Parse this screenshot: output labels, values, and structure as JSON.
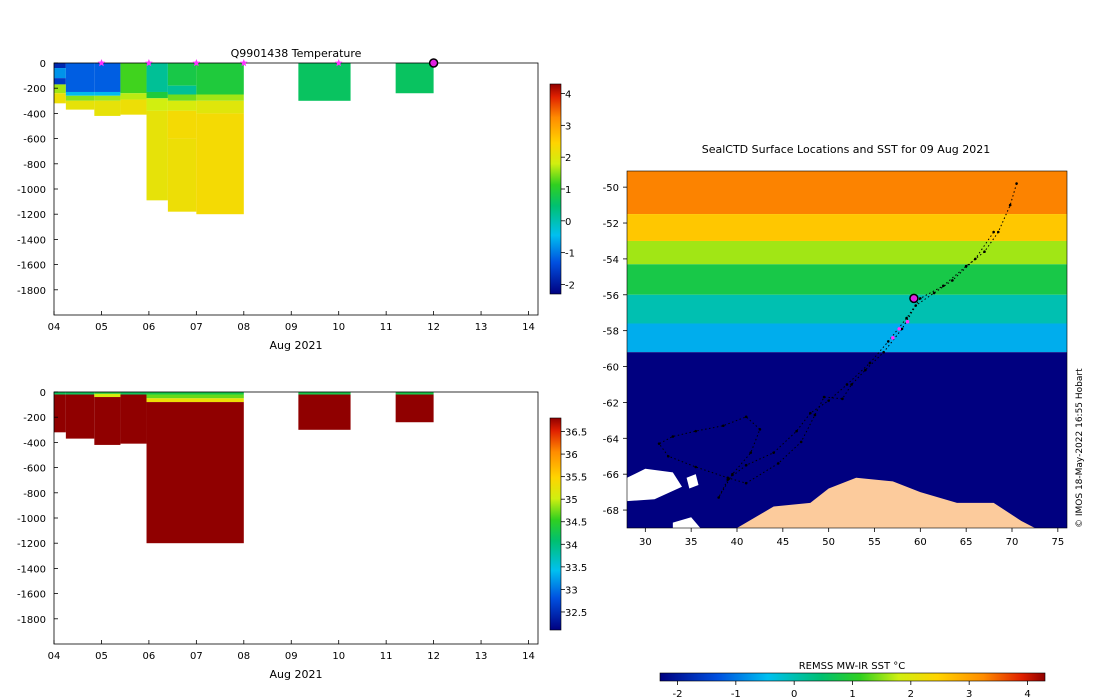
{
  "chart_data": [
    {
      "type": "heatmap",
      "title": "Q9901438  Temperature",
      "xlabel": "Aug 2021",
      "x_ticks": [
        "04",
        "05",
        "06",
        "07",
        "08",
        "09",
        "10",
        "11",
        "12",
        "13",
        "14"
      ],
      "y_ticks": [
        "0",
        "-200",
        "-400",
        "-600",
        "-800",
        "-1000",
        "-1200",
        "-1400",
        "-1600",
        "-1800"
      ],
      "xlim_day": [
        4,
        14.2
      ],
      "ylim": [
        -2000,
        0
      ],
      "colorbar": {
        "ticks": [
          "-2",
          "-1",
          "0",
          "1",
          "2",
          "3",
          "4"
        ],
        "range": [
          -2.3,
          4.3
        ]
      },
      "profiles": [
        {
          "start": 4.0,
          "end": 4.25,
          "depth": 320,
          "layers": [
            [
              40,
              -1.8
            ],
            [
              120,
              -0.8
            ],
            [
              170,
              -1.6
            ],
            [
              240,
              1.6
            ],
            [
              320,
              2.2
            ]
          ]
        },
        {
          "start": 4.25,
          "end": 4.85,
          "depth": 370,
          "layers": [
            [
              230,
              -1.2
            ],
            [
              260,
              -0.5
            ],
            [
              300,
              1.5
            ],
            [
              370,
              2.1
            ]
          ]
        },
        {
          "start": 4.85,
          "end": 5.4,
          "depth": 420,
          "layers": [
            [
              230,
              -1.2
            ],
            [
              260,
              -0.5
            ],
            [
              300,
              1.6
            ],
            [
              420,
              2.1
            ]
          ]
        },
        {
          "start": 5.4,
          "end": 5.95,
          "depth": 410,
          "layers": [
            [
              240,
              1.2
            ],
            [
              290,
              1.7
            ],
            [
              410,
              2.2
            ]
          ]
        },
        {
          "start": 5.95,
          "end": 6.4,
          "depth": 1090,
          "layers": [
            [
              230,
              0.2
            ],
            [
              280,
              0.9
            ],
            [
              380,
              1.8
            ],
            [
              1090,
              2.1
            ]
          ]
        },
        {
          "start": 6.4,
          "end": 7.0,
          "depth": 1180,
          "layers": [
            [
              180,
              0.8
            ],
            [
              250,
              0.2
            ],
            [
              300,
              1.4
            ],
            [
              380,
              1.9
            ],
            [
              600,
              2.3
            ],
            [
              1180,
              2.2
            ]
          ]
        },
        {
          "start": 7.0,
          "end": 8.0,
          "depth": 1200,
          "layers": [
            [
              250,
              0.9
            ],
            [
              300,
              1.6
            ],
            [
              400,
              2.0
            ],
            [
              1200,
              2.3
            ]
          ]
        },
        {
          "start": 9.15,
          "end": 10.25,
          "depth": 300,
          "layers": [
            [
              300,
              0.6
            ]
          ]
        },
        {
          "start": 11.2,
          "end": 12.0,
          "depth": 240,
          "layers": [
            [
              240,
              0.6
            ]
          ]
        }
      ],
      "markers": [
        {
          "day": 5.0,
          "type": "star"
        },
        {
          "day": 6.0,
          "type": "star"
        },
        {
          "day": 7.0,
          "type": "star"
        },
        {
          "day": 8.0,
          "type": "star"
        },
        {
          "day": 10.0,
          "type": "star"
        },
        {
          "day": 12.0,
          "type": "circle"
        }
      ]
    },
    {
      "type": "heatmap",
      "xlabel": "Aug 2021",
      "x_ticks": [
        "04",
        "05",
        "06",
        "07",
        "08",
        "09",
        "10",
        "11",
        "12",
        "13",
        "14"
      ],
      "y_ticks": [
        "0",
        "-200",
        "-400",
        "-600",
        "-800",
        "-1000",
        "-1200",
        "-1400",
        "-1600",
        "-1800"
      ],
      "xlim_day": [
        4,
        14.2
      ],
      "ylim": [
        -2000,
        0
      ],
      "colorbar": {
        "ticks": [
          "32.5",
          "33",
          "33.5",
          "34",
          "34.5",
          "35",
          "35.5",
          "36",
          "36.5"
        ],
        "range": [
          32.1,
          36.8
        ]
      },
      "profiles": [
        {
          "start": 4.0,
          "end": 4.25,
          "depth": 320,
          "layers": [
            [
              20,
              34.2
            ],
            [
              320,
              36.8
            ]
          ]
        },
        {
          "start": 4.25,
          "end": 4.85,
          "depth": 370,
          "layers": [
            [
              20,
              34.2
            ],
            [
              370,
              36.8
            ]
          ]
        },
        {
          "start": 4.85,
          "end": 5.4,
          "depth": 420,
          "layers": [
            [
              15,
              34.4
            ],
            [
              40,
              35.1
            ],
            [
              420,
              36.8
            ]
          ]
        },
        {
          "start": 5.4,
          "end": 5.95,
          "depth": 410,
          "layers": [
            [
              20,
              34.2
            ],
            [
              410,
              36.8
            ]
          ]
        },
        {
          "start": 5.95,
          "end": 8.0,
          "depth": 1200,
          "layers": [
            [
              20,
              34.3
            ],
            [
              50,
              34.7
            ],
            [
              80,
              35.3
            ],
            [
              1200,
              36.8
            ]
          ]
        },
        {
          "start": 9.15,
          "end": 10.25,
          "depth": 300,
          "layers": [
            [
              20,
              34.3
            ],
            [
              300,
              36.8
            ]
          ]
        },
        {
          "start": 11.2,
          "end": 12.0,
          "depth": 240,
          "layers": [
            [
              20,
              34.3
            ],
            [
              240,
              36.8
            ]
          ]
        }
      ]
    },
    {
      "type": "heatmap",
      "title": "SealCTD Surface Locations and SST for 09 Aug 2021",
      "x_ticks": [
        "30",
        "35",
        "40",
        "45",
        "50",
        "55",
        "60",
        "65",
        "70",
        "75"
      ],
      "y_ticks": [
        "-50",
        "-52",
        "-54",
        "-56",
        "-58",
        "-60",
        "-62",
        "-64",
        "-66",
        "-68"
      ],
      "xlim": [
        28,
        76
      ],
      "ylim": [
        -69,
        -49.1
      ],
      "colorbar": {
        "label": "REMSS MW-IR SST °C",
        "ticks": [
          "-2",
          "-1",
          "0",
          "1",
          "2",
          "3",
          "4"
        ],
        "range": [
          -2.3,
          4.3
        ]
      },
      "sst_bands": [
        {
          "lat_north": -49.1,
          "lat_south": -51.5,
          "sst": 3.3
        },
        {
          "lat_north": -51.5,
          "lat_south": -53.0,
          "sst": 2.6
        },
        {
          "lat_north": -53.0,
          "lat_south": -54.3,
          "sst": 1.6
        },
        {
          "lat_north": -54.3,
          "lat_south": -56.0,
          "sst": 0.8
        },
        {
          "lat_north": -56.0,
          "lat_south": -57.6,
          "sst": 0.0
        },
        {
          "lat_north": -57.6,
          "lat_south": -59.2,
          "sst": -0.6
        },
        {
          "lat_north": -59.2,
          "lat_south": -69.0,
          "sst": -2.3
        }
      ],
      "track": [
        [
          70.5,
          -49.8
        ],
        [
          69.8,
          -51.0
        ],
        [
          68.5,
          -52.5
        ],
        [
          67.0,
          -53.6
        ],
        [
          65.0,
          -54.4
        ],
        [
          62.5,
          -55.5
        ],
        [
          60.0,
          -56.2
        ],
        [
          58.5,
          -57.3
        ],
        [
          56.5,
          -58.6
        ],
        [
          54.5,
          -59.8
        ],
        [
          52.0,
          -61.0
        ],
        [
          50.0,
          -61.9
        ],
        [
          48.0,
          -62.6
        ],
        [
          46.5,
          -63.6
        ],
        [
          44.0,
          -64.8
        ],
        [
          41.0,
          -65.5
        ],
        [
          39.0,
          -66.3
        ],
        [
          38.0,
          -67.3
        ],
        [
          39.5,
          -66.0
        ],
        [
          41.5,
          -64.8
        ],
        [
          42.5,
          -63.5
        ],
        [
          41.0,
          -62.8
        ],
        [
          38.5,
          -63.3
        ],
        [
          35.5,
          -63.6
        ],
        [
          33.0,
          -63.9
        ],
        [
          31.5,
          -64.3
        ],
        [
          32.5,
          -65.0
        ],
        [
          35.5,
          -65.6
        ],
        [
          39.0,
          -66.2
        ],
        [
          41.0,
          -66.5
        ],
        [
          44.5,
          -65.4
        ],
        [
          47.0,
          -64.2
        ],
        [
          48.5,
          -62.7
        ],
        [
          49.5,
          -61.7
        ],
        [
          51.5,
          -61.8
        ],
        [
          52.5,
          -61.0
        ],
        [
          54.0,
          -60.2
        ],
        [
          56.0,
          -59.2
        ],
        [
          58.0,
          -57.9
        ],
        [
          59.5,
          -56.6
        ],
        [
          61.5,
          -55.9
        ],
        [
          63.5,
          -55.2
        ],
        [
          66.0,
          -54.0
        ],
        [
          68.0,
          -52.5
        ]
      ],
      "recent_track": [
        [
          58.6,
          -57.5
        ],
        [
          57.7,
          -57.9
        ],
        [
          57.0,
          -58.4
        ]
      ],
      "current_location": [
        59.3,
        -56.2
      ],
      "credit": "© IMOS 18-May-2022 16:55 Hobart"
    }
  ],
  "colors": {
    "land": "#fccb9c",
    "ice": "#ffffff",
    "marker_star": "#ff33ff",
    "marker_circle": "#e020e0"
  }
}
